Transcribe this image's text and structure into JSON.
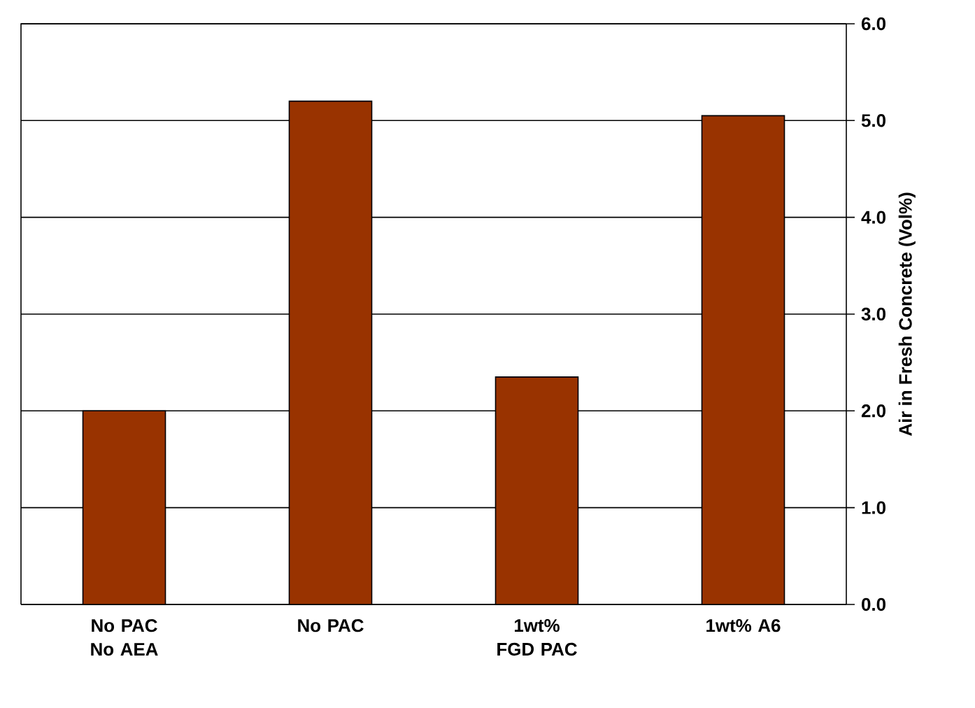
{
  "chart_data": {
    "type": "bar",
    "ylabel": "Air in Fresh Concrete (Vol%)",
    "categories": [
      "No PAC No AEA",
      "No PAC",
      "1wt% FGD PAC",
      "1wt% A6"
    ],
    "values": [
      2.0,
      5.2,
      2.35,
      5.05
    ],
    "color": "#993300",
    "ylim": [
      0,
      6
    ],
    "yticks": [
      {
        "value": 0,
        "label": "0.0"
      },
      {
        "value": 1,
        "label": "1.0"
      },
      {
        "value": 2,
        "label": "2.0"
      },
      {
        "value": 3,
        "label": "3.0"
      },
      {
        "value": 4,
        "label": "4.0"
      },
      {
        "value": 5,
        "label": "5.0"
      },
      {
        "value": 6,
        "label": "6.0"
      }
    ],
    "grid": "y"
  }
}
